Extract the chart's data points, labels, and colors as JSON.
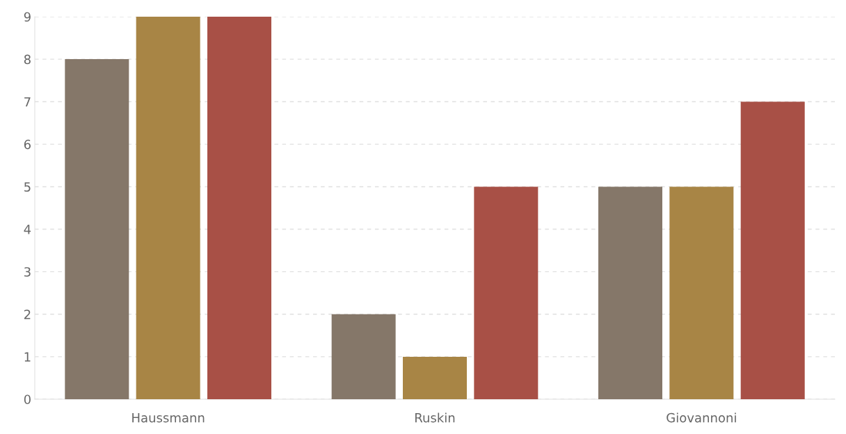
{
  "chart_data": {
    "type": "bar",
    "categories": [
      "Haussmann",
      "Ruskin",
      "Giovannoni"
    ],
    "series": [
      {
        "color": "#857769",
        "values": [
          8,
          2,
          5
        ]
      },
      {
        "color": "#a88545",
        "values": [
          9,
          1,
          5
        ]
      },
      {
        "color": "#a85046",
        "values": [
          9,
          5,
          7
        ]
      }
    ],
    "ylim": [
      0,
      9
    ],
    "yticks": [
      0,
      1,
      2,
      3,
      4,
      5,
      6,
      7,
      8,
      9
    ],
    "grid": "y"
  }
}
